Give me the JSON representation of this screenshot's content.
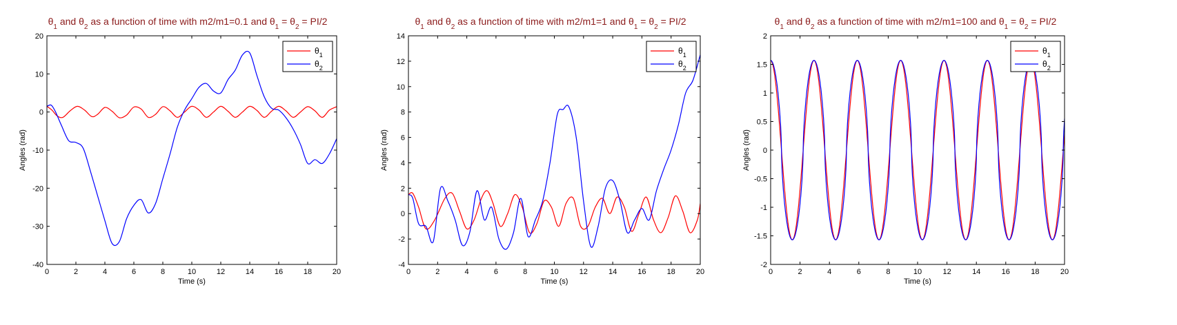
{
  "chart_data": [
    {
      "type": "line",
      "title_parts": [
        "θ",
        "1",
        " and θ",
        "2",
        " as a function of time with m2/m1=0.1 and θ",
        "1",
        " = θ",
        "2",
        " = PI/2"
      ],
      "xlabel": "Time (s)",
      "ylabel": "Angles (rad)",
      "xlim": [
        0,
        20
      ],
      "ylim": [
        -40,
        20
      ],
      "xticks": [
        0,
        2,
        4,
        6,
        8,
        10,
        12,
        14,
        16,
        18,
        20
      ],
      "yticks": [
        -40,
        -30,
        -20,
        -10,
        0,
        10,
        20
      ],
      "grid": false,
      "legend_position": "top-right",
      "series": [
        {
          "name": "θ1",
          "color": "#ff0000",
          "x": [
            0,
            0.35,
            0.7,
            1.1,
            1.6,
            2.1,
            2.6,
            3.1,
            3.5,
            4.0,
            4.5,
            5.0,
            5.5,
            6.0,
            6.5,
            7.0,
            7.5,
            8.0,
            8.5,
            9.0,
            9.5,
            10.0,
            10.5,
            11.0,
            11.5,
            12.0,
            12.5,
            13.0,
            13.5,
            14.0,
            14.5,
            15.0,
            15.5,
            16.0,
            16.5,
            17.0,
            17.5,
            18.0,
            18.5,
            19.0,
            19.5,
            20.0
          ],
          "y": [
            1.5,
            0.5,
            -1.0,
            -1.4,
            0.3,
            1.5,
            0.5,
            -1.2,
            -0.6,
            1.2,
            0.2,
            -1.5,
            -0.8,
            1.3,
            0.8,
            -1.4,
            -0.6,
            1.4,
            0.3,
            -1.4,
            0.0,
            1.5,
            0.5,
            -1.4,
            0.0,
            1.5,
            0.2,
            -1.4,
            0.0,
            1.5,
            0.4,
            -1.4,
            0.2,
            1.5,
            0.3,
            -1.4,
            0.0,
            1.4,
            0.3,
            -1.4,
            0.5,
            1.4
          ]
        },
        {
          "name": "θ2",
          "color": "#0000ff",
          "x": [
            0,
            0.3,
            0.6,
            1.0,
            1.5,
            2.0,
            2.5,
            3.0,
            3.5,
            4.0,
            4.5,
            5.0,
            5.5,
            6.0,
            6.5,
            7.0,
            7.5,
            8.0,
            8.5,
            9.0,
            9.5,
            10.0,
            10.5,
            11.0,
            11.5,
            12.0,
            12.5,
            13.0,
            13.5,
            14.0,
            14.5,
            15.0,
            15.5,
            16.0,
            16.5,
            17.0,
            17.5,
            18.0,
            18.5,
            19.0,
            19.5,
            20.0
          ],
          "y": [
            1.5,
            1.8,
            0,
            -3.5,
            -7.5,
            -8.0,
            -9.5,
            -15.5,
            -22.0,
            -28.5,
            -34.5,
            -34.0,
            -28.0,
            -24.5,
            -23.0,
            -26.5,
            -24.0,
            -17.5,
            -11.0,
            -4.0,
            0.5,
            3.5,
            6.5,
            7.5,
            5.5,
            5.0,
            8.5,
            11.0,
            15.0,
            15.5,
            9.5,
            4.0,
            1.0,
            0.5,
            -1.5,
            -4.5,
            -8.5,
            -13.5,
            -12.5,
            -13.5,
            -11.0,
            -7.0
          ]
        }
      ]
    },
    {
      "type": "line",
      "title_parts": [
        "θ",
        "1",
        " and θ",
        "2",
        " as a function of time with m2/m1=1 and θ",
        "1",
        " = θ",
        "2",
        " = PI/2"
      ],
      "xlabel": "Time (s)",
      "ylabel": "Angles (rad)",
      "xlim": [
        0,
        20
      ],
      "ylim": [
        -4,
        14
      ],
      "xticks": [
        0,
        2,
        4,
        6,
        8,
        10,
        12,
        14,
        16,
        18,
        20
      ],
      "yticks": [
        -4,
        -2,
        0,
        2,
        4,
        6,
        8,
        10,
        12,
        14
      ],
      "grid": false,
      "legend_position": "top-right",
      "series": [
        {
          "name": "θ1",
          "color": "#ff0000",
          "x": [
            0,
            0.3,
            0.7,
            1.2,
            1.8,
            2.5,
            3.0,
            3.5,
            4.0,
            4.5,
            5.0,
            5.4,
            5.8,
            6.3,
            6.8,
            7.3,
            7.8,
            8.3,
            8.8,
            9.3,
            9.8,
            10.3,
            10.8,
            11.3,
            11.8,
            12.3,
            12.8,
            13.3,
            13.8,
            14.3,
            14.8,
            15.3,
            15.8,
            16.3,
            16.8,
            17.3,
            17.8,
            18.3,
            18.8,
            19.3,
            19.8,
            20.0
          ],
          "y": [
            1.5,
            1.6,
            0.5,
            -1.2,
            -0.5,
            1.2,
            1.6,
            0.2,
            -1.2,
            -0.5,
            1.2,
            1.8,
            0.8,
            -1.0,
            0.0,
            1.5,
            0.5,
            -1.5,
            -0.8,
            1.0,
            0.5,
            -1.0,
            0.8,
            1.2,
            -1.0,
            -1.0,
            0.5,
            1.2,
            0.0,
            1.3,
            0.5,
            -1.4,
            0.0,
            1.3,
            -0.5,
            -1.5,
            -0.3,
            1.4,
            0.2,
            -1.5,
            -0.5,
            0.8
          ]
        },
        {
          "name": "θ2",
          "color": "#0000ff",
          "x": [
            0,
            0.3,
            0.7,
            1.2,
            1.7,
            2.2,
            2.7,
            3.2,
            3.7,
            4.2,
            4.7,
            5.2,
            5.7,
            6.2,
            6.7,
            7.2,
            7.7,
            8.2,
            8.7,
            9.2,
            9.7,
            10.2,
            10.6,
            11.0,
            11.5,
            12.0,
            12.5,
            13.0,
            13.5,
            14.0,
            14.5,
            15.0,
            15.5,
            16.0,
            16.5,
            17.0,
            17.5,
            18.0,
            18.5,
            19.0,
            19.5,
            20.0
          ],
          "y": [
            1.5,
            1.2,
            -0.8,
            -1.0,
            -2.2,
            2.0,
            1.0,
            -0.5,
            -2.5,
            -1.5,
            1.8,
            -0.5,
            0.5,
            -2.0,
            -2.8,
            -1.5,
            1.2,
            -1.8,
            -0.5,
            1.0,
            4.0,
            7.8,
            8.2,
            8.4,
            6.0,
            1.0,
            -2.6,
            -1.0,
            2.0,
            2.6,
            1.0,
            -1.5,
            -0.5,
            0.4,
            -0.5,
            1.8,
            3.5,
            5.0,
            7.0,
            9.5,
            10.5,
            12.5
          ]
        }
      ]
    },
    {
      "type": "line",
      "title_parts": [
        "θ",
        "1",
        " and θ",
        "2",
        " as a function of time with m2/m1=100 and θ",
        "1",
        " = θ",
        "2",
        " = PI/2"
      ],
      "xlabel": "Time (s)",
      "ylabel": "Angles (rad)",
      "xlim": [
        0,
        20
      ],
      "ylim": [
        -2,
        2
      ],
      "xticks": [
        0,
        2,
        4,
        6,
        8,
        10,
        12,
        14,
        16,
        18,
        20
      ],
      "yticks": [
        -2,
        -1.5,
        -1,
        -0.5,
        0,
        0.5,
        1,
        1.5,
        2
      ],
      "grid": false,
      "legend_position": "top-right",
      "oscillation": {
        "amplitude": 1.57,
        "period": 2.95
      },
      "series": [
        {
          "name": "θ1",
          "color": "#ff0000"
        },
        {
          "name": "θ2",
          "color": "#0000ff"
        }
      ]
    }
  ]
}
